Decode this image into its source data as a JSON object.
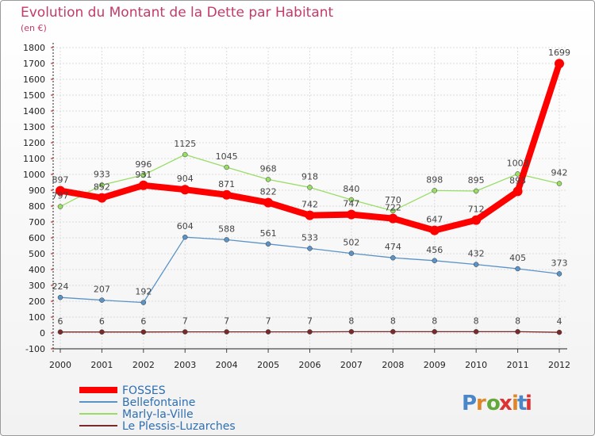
{
  "chart_data": {
    "type": "line",
    "title": "Evolution du Montant de la Dette par Habitant",
    "subtitle": "(en €)",
    "x": [
      "2000",
      "2001",
      "2002",
      "2003",
      "2004",
      "2005",
      "2006",
      "2007",
      "2008",
      "2009",
      "2010",
      "2011",
      "2012"
    ],
    "ylim": [
      -100,
      1800
    ],
    "yticks": [
      -100,
      0,
      100,
      200,
      300,
      400,
      500,
      600,
      700,
      800,
      900,
      1000,
      1100,
      1200,
      1300,
      1400,
      1500,
      1600,
      1700,
      1800
    ],
    "grid": true,
    "series": [
      {
        "name": "FOSSES",
        "color": "#ff0000",
        "values": [
          897,
          852,
          931,
          904,
          871,
          822,
          742,
          747,
          722,
          647,
          712,
          893,
          1699
        ]
      },
      {
        "name": "Bellefontaine",
        "color": "#5b93c7",
        "values": [
          224,
          207,
          192,
          604,
          588,
          561,
          533,
          502,
          474,
          456,
          432,
          405,
          373
        ]
      },
      {
        "name": "Marly-la-Ville",
        "color": "#99dd66",
        "values": [
          797,
          933,
          996,
          1125,
          1045,
          968,
          918,
          840,
          770,
          898,
          895,
          1003,
          942
        ]
      },
      {
        "name": "Le Plessis-Luzarches",
        "color": "#7a2a2a",
        "values": [
          6,
          6,
          6,
          7,
          7,
          7,
          7,
          8,
          8,
          8,
          8,
          8,
          4
        ]
      }
    ]
  },
  "labels": {
    "FOSSES": [
      "897",
      "852",
      "931",
      "904",
      "871",
      "822",
      "742",
      "747",
      "722",
      "647",
      "712",
      "893",
      "1699"
    ],
    "Bellefontaine": [
      "224",
      "207",
      "192",
      "604",
      "588",
      "561",
      "533",
      "502",
      "474",
      "456",
      "432",
      "405",
      "373"
    ],
    "Marly-la-Ville": [
      "797",
      "933",
      "996",
      "1125",
      "1045",
      "968",
      "918",
      "840",
      "770",
      "898",
      "895",
      "1003",
      "942"
    ],
    "Le Plessis-Luzarches": [
      "6",
      "6",
      "6",
      "7",
      "7",
      "7",
      "7",
      "8",
      "8",
      "8",
      "8",
      "8",
      "4"
    ]
  },
  "logo": {
    "text": "Proxiti"
  }
}
